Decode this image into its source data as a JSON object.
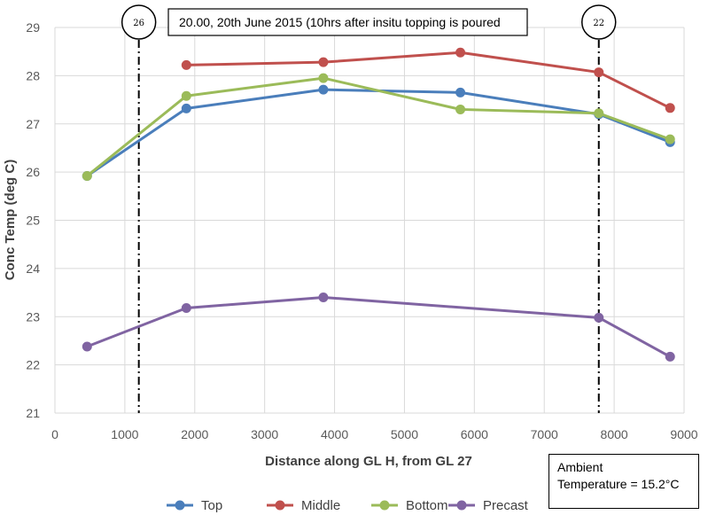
{
  "chart_data": {
    "type": "line",
    "xlabel": "Distance along GL H, from GL 27",
    "ylabel": "Conc Temp (deg C)",
    "xlim": [
      0,
      9000
    ],
    "ylim": [
      21,
      29
    ],
    "x_ticks": [
      0,
      1000,
      2000,
      3000,
      4000,
      5000,
      6000,
      7000,
      8000,
      9000
    ],
    "y_ticks": [
      21,
      22,
      23,
      24,
      25,
      26,
      27,
      28,
      29
    ],
    "grid": true,
    "legend_position": "bottom",
    "series": [
      {
        "name": "Top",
        "color": "#4a7ebb",
        "points": [
          [
            460,
            25.92
          ],
          [
            1880,
            27.32
          ],
          [
            3840,
            27.71
          ],
          [
            5800,
            27.65
          ],
          [
            7780,
            27.2
          ],
          [
            8800,
            26.62
          ]
        ]
      },
      {
        "name": "Middle",
        "color": "#c0504d",
        "points": [
          [
            1880,
            28.22
          ],
          [
            3840,
            28.28
          ],
          [
            5800,
            28.48
          ],
          [
            7780,
            28.07
          ],
          [
            8800,
            27.33
          ]
        ]
      },
      {
        "name": "Bottom",
        "color": "#9bbb59",
        "points": [
          [
            460,
            25.92
          ],
          [
            1880,
            27.58
          ],
          [
            3840,
            27.95
          ],
          [
            5800,
            27.3
          ],
          [
            7780,
            27.22
          ],
          [
            8800,
            26.68
          ]
        ]
      },
      {
        "name": "Precast",
        "color": "#8064a2",
        "points": [
          [
            460,
            22.38
          ],
          [
            1880,
            23.18
          ],
          [
            3840,
            23.4
          ],
          [
            7780,
            22.98
          ],
          [
            8800,
            22.17
          ]
        ]
      }
    ],
    "reference_lines": [
      {
        "x": 1200,
        "label": "26"
      },
      {
        "x": 7780,
        "label": "22"
      }
    ],
    "title_callout": "20.00, 20th June 2015 (10hrs after insitu topping is poured",
    "ambient_line1": "Ambient",
    "ambient_line2": "Temperature = 15.2°C"
  }
}
